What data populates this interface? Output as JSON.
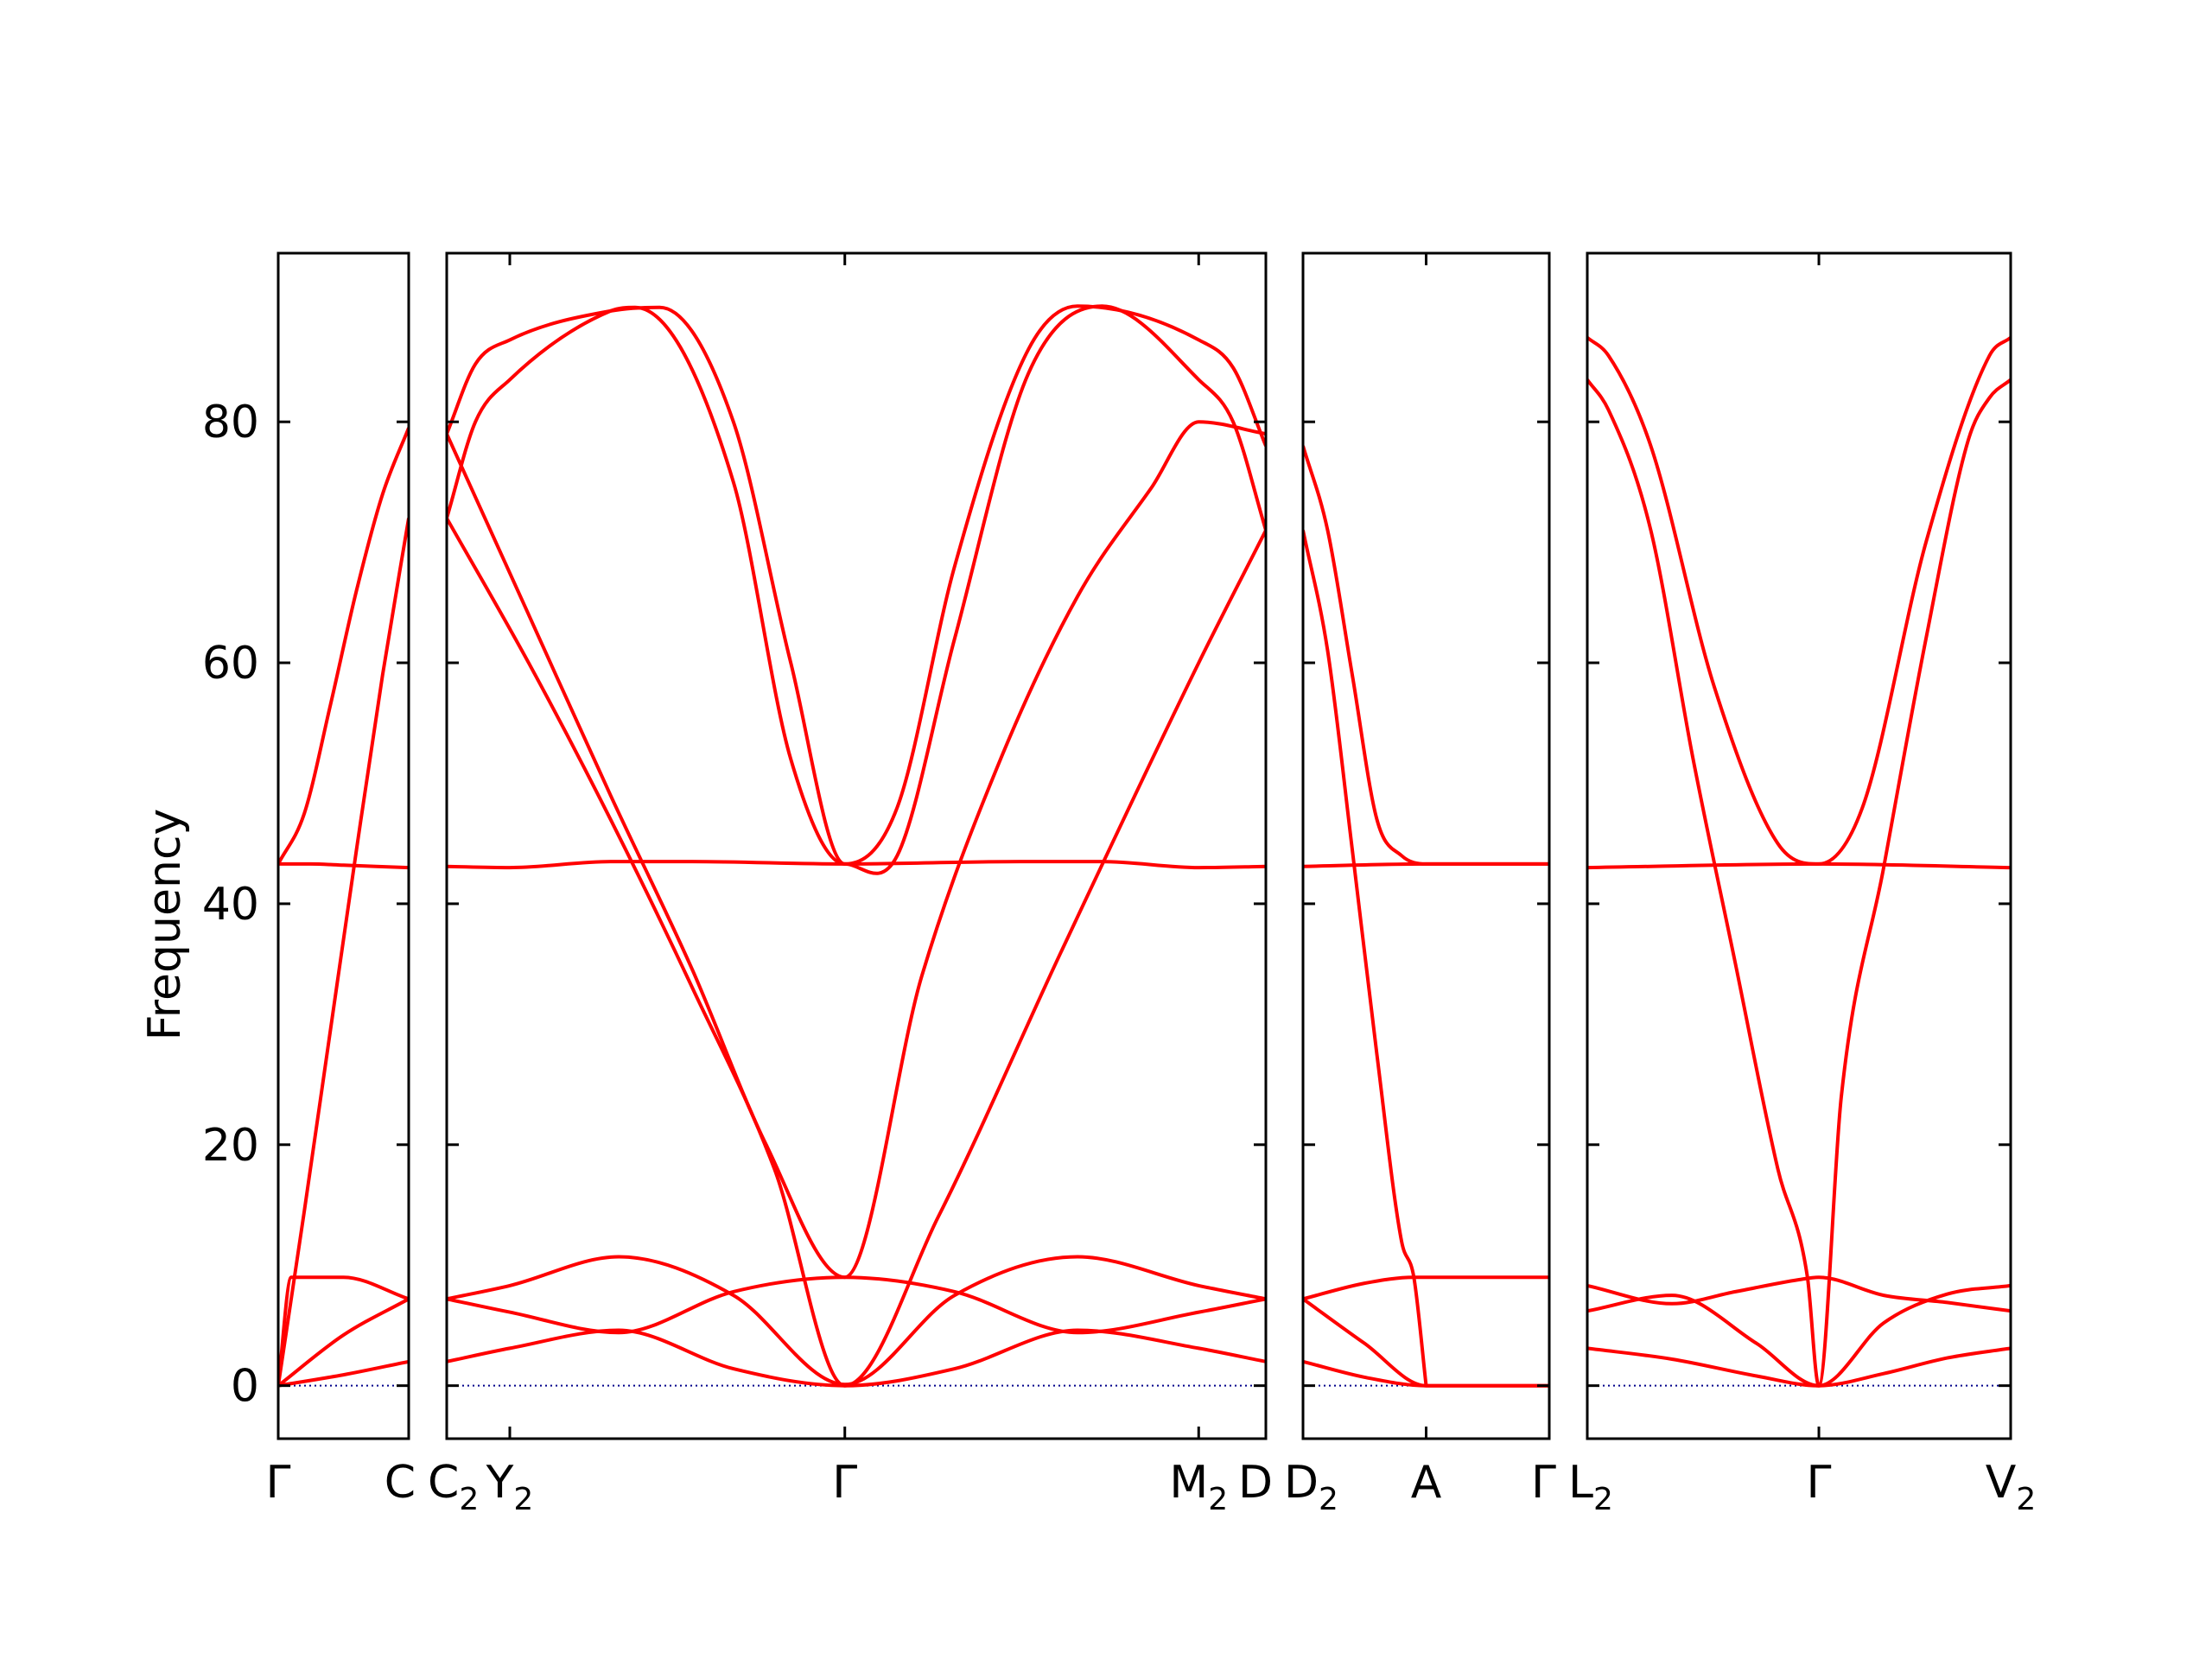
{
  "chart_data": {
    "type": "line",
    "ylabel": "Frequency",
    "ylim": [
      -4.4,
      94
    ],
    "yticks": [
      0,
      20,
      40,
      60,
      80
    ],
    "grid": false,
    "legend": "none",
    "colors": {
      "bands": "#ff0000",
      "zero_line": "#00008b",
      "axes": "#000000"
    },
    "panels": [
      {
        "id": "panel-1",
        "xrange": [
          0,
          1
        ],
        "xticks": [
          {
            "x": 0,
            "base": "Γ",
            "sub": ""
          },
          {
            "x": 1,
            "base": "C",
            "sub": ""
          }
        ],
        "bands": [
          {
            "x": [
              0,
              0.25,
              0.5,
              0.75,
              1
            ],
            "y": [
              43.3,
              43.3,
              43.2,
              43.1,
              43.0
            ]
          },
          {
            "x": [
              0,
              0.2,
              0.4,
              0.6,
              0.8,
              1
            ],
            "y": [
              43.3,
              47.5,
              56.5,
              66,
              74,
              79.5
            ]
          },
          {
            "x": [
              0,
              0.2,
              0.4,
              0.6,
              0.8,
              1
            ],
            "y": [
              0,
              14.5,
              29.5,
              44.5,
              59,
              72
            ]
          },
          {
            "x": [
              0,
              0.1,
              0.5,
              1
            ],
            "y": [
              0,
              9.0,
              9.0,
              7.2
            ]
          },
          {
            "x": [
              0,
              0.5,
              1
            ],
            "y": [
              0,
              4.2,
              7.2
            ]
          },
          {
            "x": [
              0,
              0.5,
              1
            ],
            "y": [
              0,
              0.9,
              2.0
            ]
          }
        ]
      },
      {
        "id": "panel-2",
        "xrange": [
          0,
          1
        ],
        "xticks": [
          {
            "x": 0,
            "base": "C",
            "sub": "2"
          },
          {
            "x": 0.077,
            "base": "Y",
            "sub": "2"
          },
          {
            "x": 0.486,
            "base": "Γ",
            "sub": ""
          },
          {
            "x": 0.918,
            "base": "M",
            "sub": "2"
          },
          {
            "x": 1,
            "base": "D",
            "sub": ""
          }
        ],
        "bands": [
          {
            "x": [
              0,
              0.077,
              0.2,
              0.3,
              0.486,
              0.7,
              0.8,
              0.918,
              1
            ],
            "y": [
              43.1,
              43.0,
              43.5,
              43.5,
              43.3,
              43.5,
              43.5,
              43.0,
              43.1
            ]
          },
          {
            "x": [
              0,
              0.035,
              0.077,
              0.2,
              0.26,
              0.35,
              0.42,
              0.486,
              0.55,
              0.62,
              0.71,
              0.77,
              0.918,
              0.96,
              1
            ],
            "y": [
              79,
              84.8,
              86.8,
              89.2,
              89.5,
              80,
              60,
              43.3,
              48,
              68,
              86,
              89.6,
              86.8,
              84.5,
              78
            ]
          },
          {
            "x": [
              0,
              0.035,
              0.077,
              0.2,
              0.23,
              0.35,
              0.42,
              0.486,
              0.55,
              0.62,
              0.71,
              0.8,
              0.918,
              0.96,
              1
            ],
            "y": [
              72,
              80,
              83.5,
              89.2,
              89.5,
              75,
              52,
              43.3,
              44,
              62,
              84,
              89.6,
              83.5,
              80,
              71
            ]
          },
          {
            "x": [
              0,
              0.1,
              0.2,
              0.3,
              0.39,
              0.486,
              0.58,
              0.67,
              0.77,
              0.86,
              0.918,
              1
            ],
            "y": [
              79,
              64,
              49,
              34.5,
              20,
              9.0,
              34,
              51,
              65.5,
              74.5,
              80,
              79
            ]
          },
          {
            "x": [
              0,
              0.1,
              0.2,
              0.3,
              0.4,
              0.486,
              0.6,
              0.75,
              0.918,
              1
            ],
            "y": [
              72,
              60,
              47,
              33,
              18,
              0,
              14,
              36,
              60,
              71
            ]
          },
          {
            "x": [
              0,
              0.077,
              0.21,
              0.35,
              0.486,
              0.62,
              0.77,
              0.918,
              1
            ],
            "y": [
              7.2,
              8.3,
              10.7,
              7.5,
              0.1,
              7.5,
              10.7,
              8.3,
              7.2
            ]
          },
          {
            "x": [
              0,
              0.077,
              0.21,
              0.35,
              0.486,
              0.62,
              0.77,
              0.918,
              1
            ],
            "y": [
              7.2,
              6.1,
              4.4,
              7.8,
              9.0,
              7.8,
              4.4,
              6.1,
              7.2
            ]
          },
          {
            "x": [
              0,
              0.077,
              0.21,
              0.35,
              0.486,
              0.62,
              0.77,
              0.918,
              1
            ],
            "y": [
              2.0,
              3.1,
              4.6,
              1.4,
              0.0,
              1.4,
              4.6,
              3.1,
              2.0
            ]
          }
        ]
      },
      {
        "id": "panel-3",
        "xrange": [
          0,
          1
        ],
        "xticks": [
          {
            "x": 0,
            "base": "D",
            "sub": "2"
          },
          {
            "x": 0.5,
            "base": "A",
            "sub": ""
          },
          {
            "x": 1,
            "base": "Γ",
            "sub": ""
          }
        ],
        "bands": [
          {
            "x": [
              0,
              0.5,
              1
            ],
            "y": [
              43.1,
              43.3,
              43.3
            ]
          },
          {
            "x": [
              0,
              0.1,
              0.2,
              0.3,
              0.4,
              0.5,
              1
            ],
            "y": [
              78,
              71,
              59,
              47,
              44,
              43.3,
              43.3
            ]
          },
          {
            "x": [
              0,
              0.1,
              0.2,
              0.3,
              0.4,
              0.45,
              0.5
            ],
            "y": [
              71,
              61,
              44.5,
              27.5,
              12,
              9.0,
              0
            ]
          },
          {
            "x": [
              0,
              0.25,
              0.45,
              1
            ],
            "y": [
              7.2,
              8.5,
              9.0,
              9.0
            ]
          },
          {
            "x": [
              0,
              0.25,
              0.5,
              1
            ],
            "y": [
              7.2,
              3.5,
              0,
              0
            ]
          },
          {
            "x": [
              0,
              0.25,
              0.5,
              1
            ],
            "y": [
              2.0,
              0.7,
              0,
              0
            ]
          }
        ]
      },
      {
        "id": "panel-4",
        "xrange": [
          0,
          1
        ],
        "xticks": [
          {
            "x": 0,
            "base": "L",
            "sub": "2"
          },
          {
            "x": 0.547,
            "base": "Γ",
            "sub": ""
          },
          {
            "x": 1,
            "base": "V",
            "sub": "2"
          }
        ],
        "bands": [
          {
            "x": [
              0,
              0.547,
              1
            ],
            "y": [
              43.0,
              43.3,
              43.0
            ]
          },
          {
            "x": [
              0,
              0.05,
              0.15,
              0.3,
              0.45,
              0.547,
              0.65,
              0.8,
              0.95,
              1
            ],
            "y": [
              87,
              85.5,
              78,
              58,
              45,
              43.3,
              48,
              70,
              85.5,
              87
            ]
          },
          {
            "x": [
              0,
              0.05,
              0.15,
              0.25,
              0.35,
              0.45,
              0.52,
              0.547,
              0.6,
              0.7,
              0.8,
              0.9,
              0.95,
              1
            ],
            "y": [
              83.5,
              81,
              71,
              52,
              35,
              18,
              9.0,
              0,
              24,
              43,
              62,
              78.5,
              82,
              83.5
            ]
          },
          {
            "x": [
              0,
              0.2,
              0.35,
              0.5,
              0.547,
              0.7,
              0.85,
              1
            ],
            "y": [
              8.3,
              6.8,
              7.8,
              8.8,
              9.0,
              7.5,
              6.9,
              6.2
            ]
          },
          {
            "x": [
              0,
              0.2,
              0.4,
              0.547,
              0.7,
              0.85,
              1
            ],
            "y": [
              6.2,
              7.5,
              3.5,
              0,
              5.2,
              7.6,
              8.3
            ]
          },
          {
            "x": [
              0,
              0.2,
              0.4,
              0.547,
              0.7,
              0.85,
              1
            ],
            "y": [
              3.1,
              2.2,
              0.8,
              0,
              1.0,
              2.3,
              3.1
            ]
          }
        ]
      }
    ]
  }
}
